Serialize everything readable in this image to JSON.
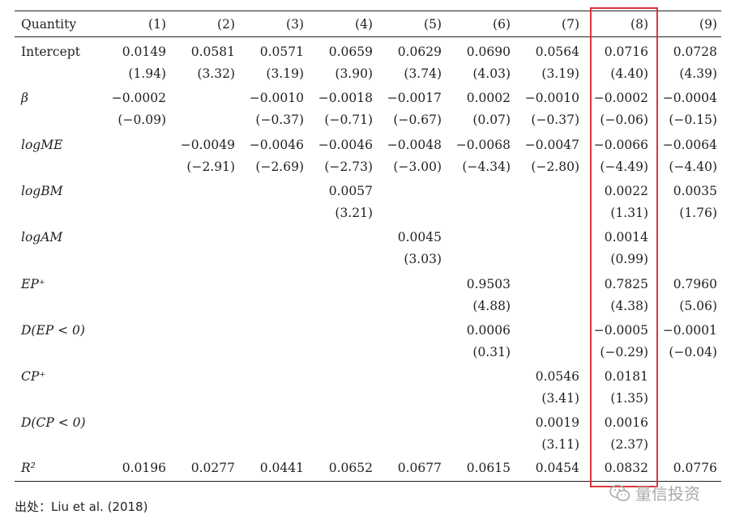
{
  "headers": [
    "Quantity",
    "(1)",
    "(2)",
    "(3)",
    "(4)",
    "(5)",
    "(6)",
    "(7)",
    "(8)",
    "(9)"
  ],
  "rows": [
    {
      "label": "Intercept",
      "italic": false,
      "est": [
        "0.0149",
        "0.0581",
        "0.0571",
        "0.0659",
        "0.0629",
        "0.0690",
        "0.0564",
        "0.0716",
        "0.0728"
      ],
      "t": [
        "(1.94)",
        "(3.32)",
        "(3.19)",
        "(3.90)",
        "(3.74)",
        "(4.03)",
        "(3.19)",
        "(4.40)",
        "(4.39)"
      ]
    },
    {
      "label": "β",
      "italic": true,
      "est": [
        "−0.0002",
        "",
        "−0.0010",
        "−0.0018",
        "−0.0017",
        "0.0002",
        "−0.0010",
        "−0.0002",
        "−0.0004"
      ],
      "t": [
        "(−0.09)",
        "",
        "(−0.37)",
        "(−0.71)",
        "(−0.67)",
        "(0.07)",
        "(−0.37)",
        "(−0.06)",
        "(−0.15)"
      ]
    },
    {
      "label": "logME",
      "italic": true,
      "est": [
        "",
        "−0.0049",
        "−0.0046",
        "−0.0046",
        "−0.0048",
        "−0.0068",
        "−0.0047",
        "−0.0066",
        "−0.0064"
      ],
      "t": [
        "",
        "(−2.91)",
        "(−2.69)",
        "(−2.73)",
        "(−3.00)",
        "(−4.34)",
        "(−2.80)",
        "(−4.49)",
        "(−4.40)"
      ]
    },
    {
      "label": "logBM",
      "italic": true,
      "est": [
        "",
        "",
        "",
        "0.0057",
        "",
        "",
        "",
        "0.0022",
        "0.0035"
      ],
      "t": [
        "",
        "",
        "",
        "(3.21)",
        "",
        "",
        "",
        "(1.31)",
        "(1.76)"
      ]
    },
    {
      "label": "logAM",
      "italic": true,
      "est": [
        "",
        "",
        "",
        "",
        "0.0045",
        "",
        "",
        "0.0014",
        ""
      ],
      "t": [
        "",
        "",
        "",
        "",
        "(3.03)",
        "",
        "",
        "(0.99)",
        ""
      ]
    },
    {
      "label": "EP⁺",
      "italic": true,
      "est": [
        "",
        "",
        "",
        "",
        "",
        "0.9503",
        "",
        "0.7825",
        "0.7960"
      ],
      "t": [
        "",
        "",
        "",
        "",
        "",
        "(4.88)",
        "",
        "(4.38)",
        "(5.06)"
      ]
    },
    {
      "label": "D(EP < 0)",
      "italic": true,
      "est": [
        "",
        "",
        "",
        "",
        "",
        "0.0006",
        "",
        "−0.0005",
        "−0.0001"
      ],
      "t": [
        "",
        "",
        "",
        "",
        "",
        "(0.31)",
        "",
        "(−0.29)",
        "(−0.04)"
      ]
    },
    {
      "label": "CP⁺",
      "italic": true,
      "est": [
        "",
        "",
        "",
        "",
        "",
        "",
        "0.0546",
        "0.0181",
        ""
      ],
      "t": [
        "",
        "",
        "",
        "",
        "",
        "",
        "(3.41)",
        "(1.35)",
        ""
      ]
    },
    {
      "label": "D(CP < 0)",
      "italic": true,
      "est": [
        "",
        "",
        "",
        "",
        "",
        "",
        "0.0019",
        "0.0016",
        ""
      ],
      "t": [
        "",
        "",
        "",
        "",
        "",
        "",
        "(3.11)",
        "(2.37)",
        ""
      ]
    }
  ],
  "r2": {
    "label": "R²",
    "values": [
      "0.0196",
      "0.0277",
      "0.0441",
      "0.0652",
      "0.0677",
      "0.0615",
      "0.0454",
      "0.0832",
      "0.0776"
    ]
  },
  "highlight_column": "(8)",
  "highlight_color": "#d9373a",
  "source": "出处：Liu et al. (2018)",
  "watermark": "量信投资"
}
